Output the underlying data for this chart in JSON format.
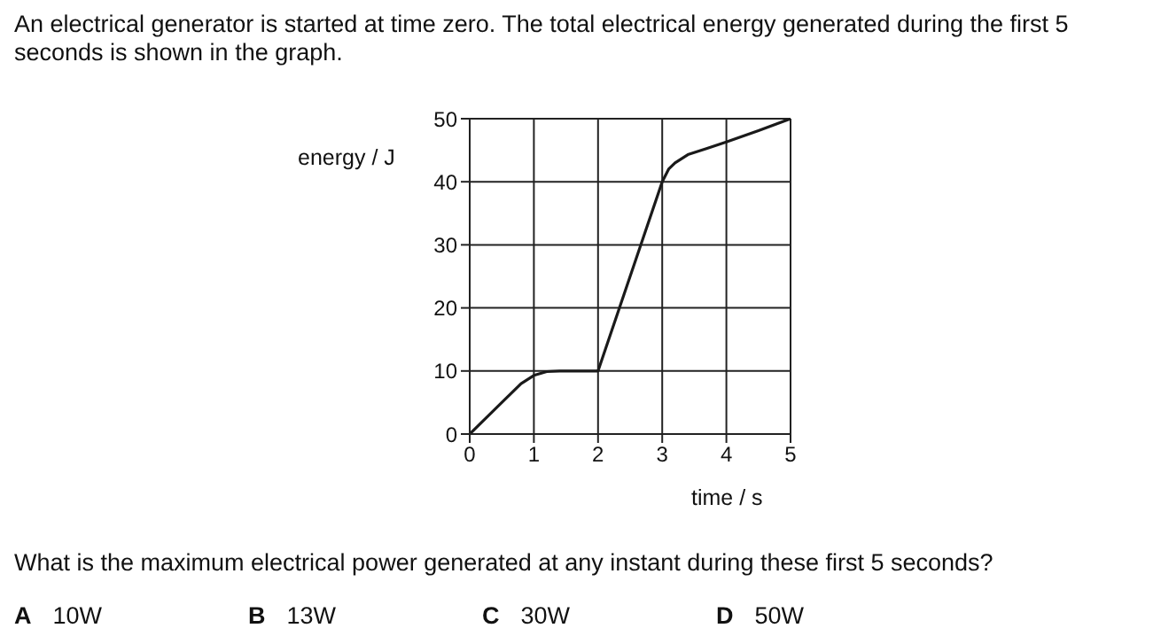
{
  "chart_data": {
    "type": "line",
    "title": "An electrical generator is started at time zero. The total electrical energy generated during the first 5 seconds is shown in the graph.",
    "xlabel": "time / s",
    "ylabel": "energy / J",
    "x": [
      0,
      0.5,
      0.8,
      1,
      1.2,
      1.4,
      2,
      2.5,
      3,
      3.1,
      3.2,
      3.4,
      3.7,
      4,
      4.5,
      5
    ],
    "series": [
      {
        "color": "#1a1a1a",
        "values": [
          0,
          5,
          8,
          9.3,
          9.9,
          10,
          10,
          25,
          40,
          42,
          43,
          44.3,
          45.3,
          46.3,
          48.1,
          50
        ]
      }
    ],
    "xlim": [
      0,
      5
    ],
    "xticks": [
      0,
      1,
      2,
      3,
      4,
      5
    ],
    "ylim": [
      0,
      50
    ],
    "yticks": [
      0,
      10,
      20,
      30,
      40,
      50
    ],
    "grid": true,
    "marker": "none",
    "line_style": "solid",
    "annotations": [
      "What is the maximum electrical power generated at any instant during these first 5 seconds?",
      "A 10W",
      "B 13W",
      "C 30W",
      "D 50W"
    ]
  }
}
